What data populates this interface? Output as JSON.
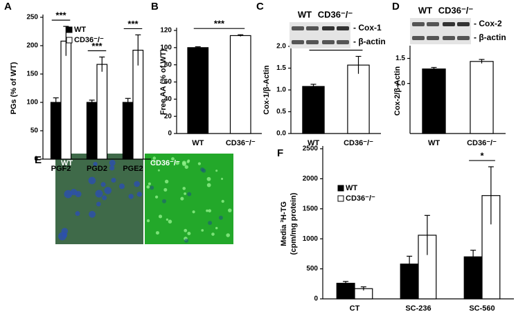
{
  "chart_data": [
    {
      "panel": "A",
      "type": "bar",
      "ylabel": "PGs (% of WT)",
      "categories": [
        "PGF2",
        "PGD2",
        "PGE2"
      ],
      "series": [
        {
          "name": "WT",
          "color": "#000000",
          "values": [
            100,
            100,
            100
          ],
          "errors": [
            8,
            4,
            7
          ]
        },
        {
          "name": "CD36⁻/⁻",
          "color": "#ffffff",
          "values": [
            208,
            167,
            192
          ],
          "errors": [
            26,
            13,
            27
          ]
        }
      ],
      "ylim": [
        0,
        250
      ],
      "yticks": [
        0,
        50,
        100,
        150,
        200,
        250
      ],
      "legend": "upper left",
      "significance": [
        "***",
        "***",
        "***"
      ]
    },
    {
      "panel": "B",
      "type": "bar",
      "ylabel": "Free AA (% of WT)",
      "categories": [
        "WT",
        "CD36⁻/⁻"
      ],
      "values": [
        100,
        114
      ],
      "errors": [
        1,
        1
      ],
      "colors": [
        "#000000",
        "#ffffff"
      ],
      "ylim": [
        0,
        120
      ],
      "yticks": [
        0,
        20,
        40,
        60,
        80,
        100,
        120
      ],
      "significance": "***"
    },
    {
      "panel": "C",
      "type": "bar",
      "ylabel": "Cox-1/β-Actin",
      "categories": [
        "WT",
        "CD36⁻/⁻"
      ],
      "values": [
        1.08,
        1.57
      ],
      "errors": [
        0.05,
        0.2
      ],
      "colors": [
        "#000000",
        "#ffffff"
      ],
      "ylim": [
        0,
        2
      ],
      "yticks": [
        {
          "value": 0,
          "label": "0.0"
        },
        0.5,
        {
          "value": 1,
          "label": "1.0"
        },
        1.5,
        {
          "value": 2,
          "label": "2.0"
        }
      ],
      "significance": "*",
      "blot": {
        "lanes": [
          "WT",
          "CD36⁻/⁻"
        ],
        "bands": [
          "- Cox-1",
          "- β-actin"
        ]
      }
    },
    {
      "panel": "D",
      "type": "bar",
      "ylabel": "Cox-2/β-Actin",
      "categories": [
        "WT",
        "CD36⁻/⁻"
      ],
      "values": [
        1.29,
        1.44
      ],
      "errors": [
        0.03,
        0.04
      ],
      "colors": [
        "#000000",
        "#ffffff"
      ],
      "ylim": [
        0,
        1.7
      ],
      "yticks": [
        {
          "value": 1,
          "label": "1.0"
        },
        1.5
      ],
      "blot": {
        "lanes": [
          "WT",
          "CD36⁻/⁻"
        ],
        "bands": [
          "- Cox-2",
          "- β-actin"
        ]
      }
    },
    {
      "panel": "F",
      "type": "bar",
      "ylabel": [
        "Media ³H-TG",
        "(cpm/mg protein)"
      ],
      "categories": [
        "CT",
        "SC-236",
        "SC-560"
      ],
      "series": [
        {
          "name": "WT",
          "color": "#000000",
          "values": [
            260,
            580,
            700
          ],
          "errors": [
            30,
            130,
            110
          ]
        },
        {
          "name": "CD36⁻/⁻",
          "color": "#ffffff",
          "values": [
            170,
            1060,
            1720
          ],
          "errors": [
            30,
            330,
            480
          ]
        }
      ],
      "ylim": [
        0,
        2500
      ],
      "yticks": [
        0,
        500,
        1000,
        1500,
        2000,
        2500
      ],
      "legend": "upper left",
      "significance": [
        null,
        null,
        "*"
      ]
    }
  ],
  "image_panel": {
    "panel": "E",
    "labels": [
      "WT",
      "CD36⁻/⁻"
    ]
  }
}
